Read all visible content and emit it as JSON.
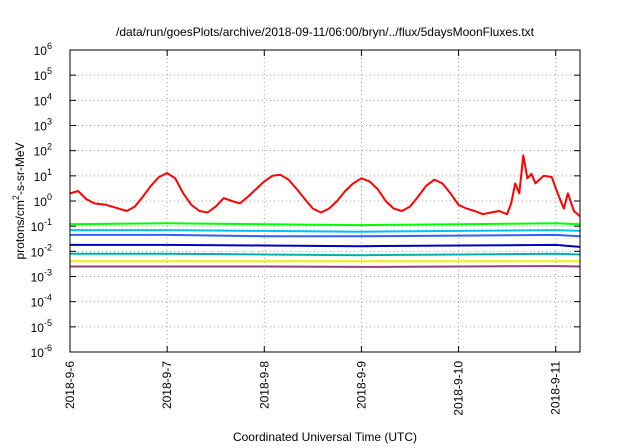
{
  "chart_data": {
    "type": "line",
    "title": "/data/run/goesPlots/archive/2018-09-11/06:00/bryn/../flux/5daysMoonFluxes.txt",
    "xlabel": "Coordinated Universal Time (UTC)",
    "ylabel": "protons/cm2-s-sr-MeV",
    "ylabel_base": "protons/cm",
    "ylabel_sup": "2",
    "ylabel_rest": "-s-sr-MeV",
    "y_scale": "log",
    "ylim": [
      1e-06,
      1000000.0
    ],
    "y_ticks": [
      {
        "value": 1e-06,
        "base": "10",
        "exp": "-6"
      },
      {
        "value": 1e-05,
        "base": "10",
        "exp": "-5"
      },
      {
        "value": 0.0001,
        "base": "10",
        "exp": "-4"
      },
      {
        "value": 0.001,
        "base": "10",
        "exp": "-3"
      },
      {
        "value": 0.01,
        "base": "10",
        "exp": "-2"
      },
      {
        "value": 0.1,
        "base": "10",
        "exp": "-1"
      },
      {
        "value": 1.0,
        "base": "10",
        "exp": "0"
      },
      {
        "value": 10.0,
        "base": "10",
        "exp": "1"
      },
      {
        "value": 100.0,
        "base": "10",
        "exp": "2"
      },
      {
        "value": 1000.0,
        "base": "10",
        "exp": "3"
      },
      {
        "value": 10000.0,
        "base": "10",
        "exp": "4"
      },
      {
        "value": 100000.0,
        "base": "10",
        "exp": "5"
      },
      {
        "value": 1000000.0,
        "base": "10",
        "exp": "6"
      }
    ],
    "xlim": [
      "2018-09-06T00:00",
      "2018-09-11T06:00"
    ],
    "x_ticks": [
      "2018-9-6",
      "2018-9-7",
      "2018-9-8",
      "2018-9-9",
      "2018-9-10",
      "2018-9-11"
    ],
    "grid": true,
    "series": [
      {
        "color": "#ff0000",
        "x": [
          "2018-09-06T00:00",
          "2018-09-06T02:00",
          "2018-09-06T04:00",
          "2018-09-06T06:00",
          "2018-09-06T09:00",
          "2018-09-06T12:00",
          "2018-09-06T14:00",
          "2018-09-06T16:00",
          "2018-09-06T18:00",
          "2018-09-06T20:00",
          "2018-09-06T22:00",
          "2018-09-07T00:00",
          "2018-09-07T02:00",
          "2018-09-07T04:00",
          "2018-09-07T06:00",
          "2018-09-07T08:00",
          "2018-09-07T10:00",
          "2018-09-07T12:00",
          "2018-09-07T14:00",
          "2018-09-07T16:00",
          "2018-09-07T18:00",
          "2018-09-07T20:00",
          "2018-09-07T22:00",
          "2018-09-08T00:00",
          "2018-09-08T02:00",
          "2018-09-08T04:00",
          "2018-09-08T06:00",
          "2018-09-08T08:00",
          "2018-09-08T10:00",
          "2018-09-08T12:00",
          "2018-09-08T14:00",
          "2018-09-08T16:00",
          "2018-09-08T18:00",
          "2018-09-08T20:00",
          "2018-09-08T22:00",
          "2018-09-09T00:00",
          "2018-09-09T02:00",
          "2018-09-09T04:00",
          "2018-09-09T06:00",
          "2018-09-09T08:00",
          "2018-09-09T10:00",
          "2018-09-09T12:00",
          "2018-09-09T14:00",
          "2018-09-09T16:00",
          "2018-09-09T18:00",
          "2018-09-09T20:00",
          "2018-09-09T22:00",
          "2018-09-10T00:00",
          "2018-09-10T02:00",
          "2018-09-10T04:00",
          "2018-09-10T06:00",
          "2018-09-10T08:00",
          "2018-09-10T10:00",
          "2018-09-10T12:00",
          "2018-09-10T13:00",
          "2018-09-10T14:00",
          "2018-09-10T15:00",
          "2018-09-10T16:00",
          "2018-09-10T17:00",
          "2018-09-10T18:00",
          "2018-09-10T19:00",
          "2018-09-10T21:00",
          "2018-09-10T23:00",
          "2018-09-11T00:30",
          "2018-09-11T02:00",
          "2018-09-11T03:00",
          "2018-09-11T04:30",
          "2018-09-11T06:00"
        ],
        "values": [
          2,
          2.5,
          1.2,
          0.8,
          0.7,
          0.5,
          0.4,
          0.6,
          1.5,
          4,
          9,
          13,
          8,
          2,
          0.7,
          0.4,
          0.35,
          0.6,
          1.3,
          1,
          0.8,
          1.5,
          3,
          6,
          10,
          11,
          7,
          3,
          1.2,
          0.5,
          0.35,
          0.5,
          1,
          2.5,
          5,
          8,
          6,
          3,
          1,
          0.5,
          0.4,
          0.6,
          1.5,
          4,
          7,
          5,
          2,
          0.7,
          0.5,
          0.4,
          0.3,
          0.35,
          0.4,
          0.3,
          0.8,
          5,
          2,
          65,
          8,
          12,
          5,
          10,
          9,
          2,
          0.5,
          2,
          0.4,
          0.25
        ]
      },
      {
        "color": "#00ff00",
        "x": [
          "2018-09-06T00:00",
          "2018-09-07T00:00",
          "2018-09-08T00:00",
          "2018-09-09T00:00",
          "2018-09-10T00:00",
          "2018-09-11T00:00",
          "2018-09-11T06:00"
        ],
        "values": [
          0.12,
          0.13,
          0.12,
          0.11,
          0.12,
          0.13,
          0.12
        ]
      },
      {
        "color": "#00c0ff",
        "x": [
          "2018-09-06T00:00",
          "2018-09-07T00:00",
          "2018-09-08T00:00",
          "2018-09-09T00:00",
          "2018-09-10T00:00",
          "2018-09-11T00:00",
          "2018-09-11T06:00"
        ],
        "values": [
          0.07,
          0.07,
          0.065,
          0.06,
          0.065,
          0.07,
          0.065
        ]
      },
      {
        "color": "#3060ff",
        "x": [
          "2018-09-06T00:00",
          "2018-09-07T00:00",
          "2018-09-08T00:00",
          "2018-09-09T00:00",
          "2018-09-10T00:00",
          "2018-09-11T00:00",
          "2018-09-11T06:00"
        ],
        "values": [
          0.045,
          0.045,
          0.04,
          0.04,
          0.042,
          0.045,
          0.04
        ]
      },
      {
        "color": "#0000c0",
        "x": [
          "2018-09-06T00:00",
          "2018-09-07T00:00",
          "2018-09-08T00:00",
          "2018-09-09T00:00",
          "2018-09-10T00:00",
          "2018-09-11T00:00",
          "2018-09-11T06:00"
        ],
        "values": [
          0.018,
          0.018,
          0.017,
          0.016,
          0.017,
          0.018,
          0.015
        ]
      },
      {
        "color": "#00b0b0",
        "x": [
          "2018-09-06T00:00",
          "2018-09-07T00:00",
          "2018-09-08T00:00",
          "2018-09-09T00:00",
          "2018-09-10T00:00",
          "2018-09-11T00:00",
          "2018-09-11T06:00"
        ],
        "values": [
          0.008,
          0.008,
          0.0075,
          0.007,
          0.0075,
          0.008,
          0.0075
        ]
      },
      {
        "color": "#f0f000",
        "x": [
          "2018-09-06T00:00",
          "2018-09-07T00:00",
          "2018-09-08T00:00",
          "2018-09-09T00:00",
          "2018-09-10T00:00",
          "2018-09-11T00:00",
          "2018-09-11T06:00"
        ],
        "values": [
          0.004,
          0.004,
          0.004,
          0.004,
          0.004,
          0.004,
          0.004
        ]
      },
      {
        "color": "#904080",
        "x": [
          "2018-09-06T00:00",
          "2018-09-07T00:00",
          "2018-09-08T00:00",
          "2018-09-09T00:00",
          "2018-09-10T00:00",
          "2018-09-11T00:00",
          "2018-09-11T06:00"
        ],
        "values": [
          0.0025,
          0.0025,
          0.0025,
          0.0024,
          0.0025,
          0.0026,
          0.0025
        ]
      }
    ]
  }
}
